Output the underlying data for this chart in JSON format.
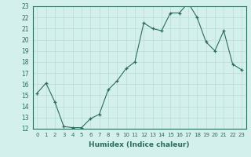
{
  "x": [
    0,
    1,
    2,
    3,
    4,
    5,
    6,
    7,
    8,
    9,
    10,
    11,
    12,
    13,
    14,
    15,
    16,
    17,
    18,
    19,
    20,
    21,
    22,
    23
  ],
  "y": [
    15.2,
    16.1,
    14.4,
    12.2,
    12.1,
    12.1,
    12.9,
    13.3,
    15.5,
    16.3,
    17.4,
    18.0,
    21.5,
    21.0,
    20.8,
    22.4,
    22.4,
    23.3,
    22.0,
    19.8,
    19.0,
    20.8,
    17.8,
    17.3
  ],
  "xlabel": "Humidex (Indice chaleur)",
  "line_color": "#2d6b5e",
  "marker": "+",
  "bg_color": "#d4f0ec",
  "grid_color": "#b8ddd8",
  "ylim": [
    12,
    23
  ],
  "xlim": [
    -0.5,
    23.5
  ],
  "yticks": [
    12,
    13,
    14,
    15,
    16,
    17,
    18,
    19,
    20,
    21,
    22,
    23
  ],
  "xticks": [
    0,
    1,
    2,
    3,
    4,
    5,
    6,
    7,
    8,
    9,
    10,
    11,
    12,
    13,
    14,
    15,
    16,
    17,
    18,
    19,
    20,
    21,
    22,
    23
  ],
  "xtick_labels": [
    "0",
    "1",
    "2",
    "3",
    "4",
    "5",
    "6",
    "7",
    "8",
    "9",
    "10",
    "11",
    "12",
    "13",
    "14",
    "15",
    "16",
    "17",
    "18",
    "19",
    "20",
    "21",
    "22",
    "23"
  ],
  "tick_color": "#2d6b5e",
  "spine_color": "#2d6b5e"
}
